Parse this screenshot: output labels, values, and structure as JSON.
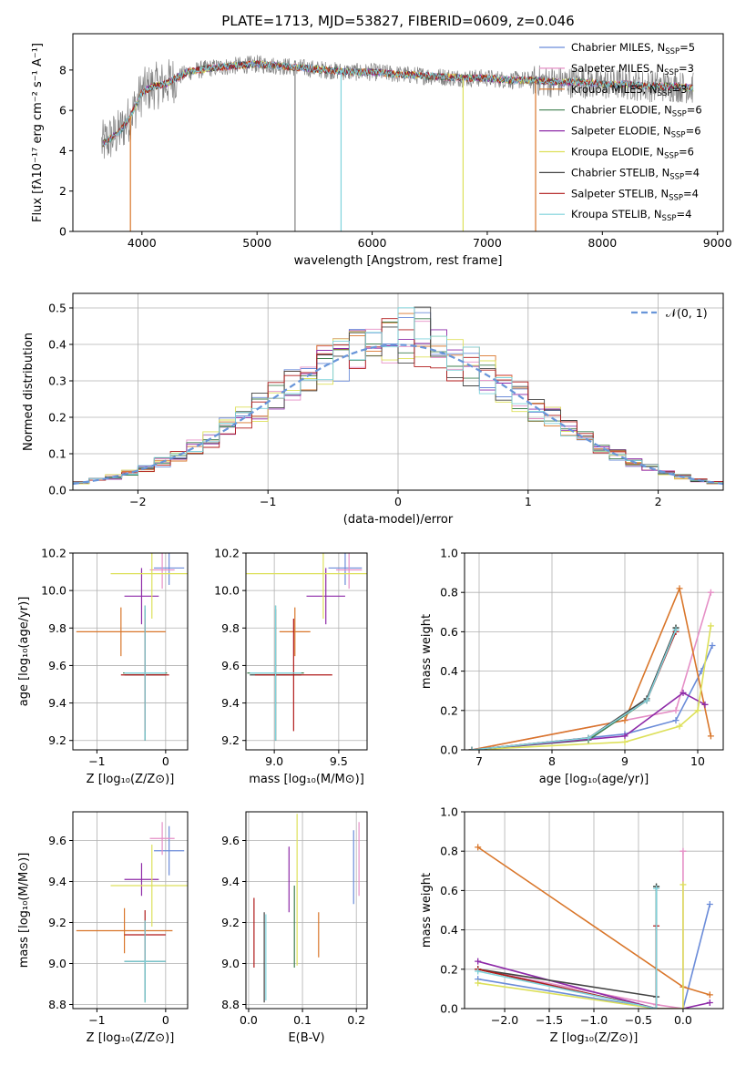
{
  "figure_title": "PLATE=1713, MJD=53827, FIBERID=0609, z=0.046",
  "colors": {
    "Chabrier MILES": "#6b8cd9",
    "Salpeter MILES": "#e58fc6",
    "Kroupa MILES": "#d9762a",
    "Chabrier ELODIE": "#3f7f4f",
    "Salpeter ELODIE": "#8e2aa8",
    "Kroupa ELODIE": "#dde05a",
    "Chabrier STELIB": "#444444",
    "Salpeter STELIB": "#b01a1a",
    "Kroupa STELIB": "#7fd3dc",
    "data": "#808080",
    "normal": "#6895d9"
  },
  "chart_data": [
    {
      "id": "spectrum",
      "type": "line",
      "title": "PLATE=1713, MJD=53827, FIBERID=0609, z=0.046",
      "xlabel": "wavelength [Angstrom, rest frame]",
      "ylabel": "Flux [fλ10⁻¹⁷ erg cm⁻² s⁻¹ A⁻¹]",
      "xlim": [
        3400,
        9050
      ],
      "ylim": [
        0,
        9.8
      ],
      "xticks": [
        4000,
        5000,
        6000,
        7000,
        8000,
        9000
      ],
      "yticks": [
        0,
        2,
        4,
        6,
        8
      ],
      "legend_position": "top-right",
      "legend": [
        {
          "label": "Chabrier MILES, N",
          "sub": "SSP",
          "val": "=5"
        },
        {
          "label": "Salpeter MILES, N",
          "sub": "SSP",
          "val": "=3"
        },
        {
          "label": "Kroupa MILES, N",
          "sub": "SSP",
          "val": "=3"
        },
        {
          "label": "Chabrier ELODIE, N",
          "sub": "SSP",
          "val": "=6"
        },
        {
          "label": "Salpeter ELODIE, N",
          "sub": "SSP",
          "val": "=6"
        },
        {
          "label": "Kroupa ELODIE, N",
          "sub": "SSP",
          "val": "=6"
        },
        {
          "label": "Chabrier STELIB, N",
          "sub": "SSP",
          "val": "=4"
        },
        {
          "label": "Salpeter STELIB, N",
          "sub": "SSP",
          "val": "=4"
        },
        {
          "label": "Kroupa STELIB, N",
          "sub": "SSP",
          "val": "=4"
        }
      ],
      "continuum": {
        "x": [
          3650,
          3700,
          3800,
          3900,
          4000,
          4100,
          4200,
          4300,
          4400,
          4600,
          4800,
          5000,
          5200,
          5400,
          5600,
          5800,
          6000,
          6200,
          6500,
          6800,
          7000,
          7200,
          7400,
          7600,
          7800,
          8000,
          8200,
          8400,
          8600,
          8800
        ],
        "y": [
          4.3,
          4.5,
          4.9,
          5.7,
          6.9,
          7.2,
          7.3,
          7.6,
          7.9,
          8.1,
          8.2,
          8.3,
          8.2,
          8.1,
          8.0,
          7.9,
          7.9,
          7.8,
          7.7,
          7.6,
          7.6,
          7.5,
          7.5,
          7.4,
          7.4,
          7.3,
          7.3,
          7.2,
          7.2,
          7.1
        ]
      },
      "dips": [
        {
          "x": 3900,
          "y": 0
        },
        {
          "x": 5330,
          "y": 0
        },
        {
          "x": 5730,
          "y": 0
        },
        {
          "x": 6790,
          "y": 0
        },
        {
          "x": 7420,
          "y": 0
        }
      ]
    },
    {
      "id": "residuals",
      "type": "line",
      "xlabel": "(data-model)/error",
      "ylabel": "Normed distribution",
      "xlim": [
        -2.5,
        2.5
      ],
      "ylim": [
        0,
        0.54
      ],
      "xticks": [
        -2,
        -1,
        0,
        1,
        2
      ],
      "yticks": [
        0.0,
        0.1,
        0.2,
        0.3,
        0.4,
        0.5
      ],
      "grid": true,
      "legend_position": "top-right",
      "legend_label": "𝒩(0, 1)",
      "curve": "standard normal N(0,1), dashed",
      "bin_width": 0.125
    },
    {
      "id": "age-vs-Z",
      "type": "scatter",
      "xlabel": "Z [log₁₀(Z/Z⊙)]",
      "ylabel": "age  [log₁₀(age/yr)]",
      "xlim": [
        -1.35,
        0.32
      ],
      "ylim": [
        9.15,
        10.2
      ],
      "xticks": [
        -1,
        0
      ],
      "yticks": [
        9.2,
        9.4,
        9.6,
        9.8,
        10.0,
        10.2
      ],
      "grid": true,
      "points": [
        {
          "model": "Chabrier MILES",
          "x": 0.05,
          "y": 10.12,
          "xerr": 0.22,
          "yerr": 0.09
        },
        {
          "model": "Salpeter MILES",
          "x": -0.05,
          "y": 10.11,
          "xerr": 0.18,
          "yerr": 0.1
        },
        {
          "model": "Kroupa MILES",
          "x": -0.65,
          "y": 9.78,
          "xerr": 0.65,
          "yerr": 0.13
        },
        {
          "model": "Chabrier ELODIE",
          "x": -0.3,
          "y": 9.56,
          "xerr": 0.32,
          "yerr": 0.36
        },
        {
          "model": "Salpeter ELODIE",
          "x": -0.35,
          "y": 9.97,
          "xerr": 0.25,
          "yerr": 0.15
        },
        {
          "model": "Kroupa ELODIE",
          "x": -0.2,
          "y": 10.09,
          "xerr": 0.6,
          "yerr": 0.24
        },
        {
          "model": "Chabrier STELIB",
          "x": -0.3,
          "y": 9.55,
          "xerr": 0.3,
          "yerr": 0.35
        },
        {
          "model": "Salpeter STELIB",
          "x": -0.3,
          "y": 9.55,
          "xerr": 0.35,
          "yerr": 0.3
        },
        {
          "model": "Kroupa STELIB",
          "x": -0.3,
          "y": 9.56,
          "xerr": 0.3,
          "yerr": 0.36
        }
      ]
    },
    {
      "id": "age-vs-mass",
      "type": "scatter",
      "xlabel": "mass [log₁₀(M/M⊙)]",
      "xlim": [
        8.78,
        9.72
      ],
      "ylim": [
        9.15,
        10.2
      ],
      "xticks": [
        9.0,
        9.5
      ],
      "yticks": [
        9.2,
        9.4,
        9.6,
        9.8,
        10.0,
        10.2
      ],
      "grid": true,
      "points": [
        {
          "model": "Chabrier MILES",
          "x": 9.55,
          "y": 10.12,
          "xerr": 0.13,
          "yerr": 0.09
        },
        {
          "model": "Salpeter MILES",
          "x": 9.58,
          "y": 10.11,
          "xerr": 0.1,
          "yerr": 0.1
        },
        {
          "model": "Kroupa MILES",
          "x": 9.16,
          "y": 9.78,
          "xerr": 0.12,
          "yerr": 0.13
        },
        {
          "model": "Chabrier ELODIE",
          "x": 9.01,
          "y": 9.56,
          "xerr": 0.22,
          "yerr": 0.36
        },
        {
          "model": "Salpeter ELODIE",
          "x": 9.4,
          "y": 9.97,
          "xerr": 0.15,
          "yerr": 0.15
        },
        {
          "model": "Kroupa ELODIE",
          "x": 9.38,
          "y": 10.09,
          "xerr": 0.6,
          "yerr": 0.24
        },
        {
          "model": "Chabrier STELIB",
          "x": 9.01,
          "y": 9.55,
          "xerr": 0.2,
          "yerr": 0.35
        },
        {
          "model": "Salpeter STELIB",
          "x": 9.15,
          "y": 9.55,
          "xerr": 0.3,
          "yerr": 0.3
        },
        {
          "model": "Kroupa STELIB",
          "x": 9.01,
          "y": 9.56,
          "xerr": 0.2,
          "yerr": 0.36
        }
      ]
    },
    {
      "id": "weight-vs-age",
      "type": "line",
      "xlabel": "age  [log₁₀(age/yr)]",
      "ylabel": "mass weight",
      "xlim": [
        6.8,
        10.35
      ],
      "ylim": [
        0,
        1.0
      ],
      "xticks": [
        7,
        8,
        9,
        10
      ],
      "yticks": [
        0.0,
        0.2,
        0.4,
        0.6,
        0.8,
        1.0
      ],
      "grid": true,
      "series": [
        {
          "model": "Chabrier MILES",
          "x": [
            6.9,
            9.0,
            9.7,
            10.05,
            10.2
          ],
          "y": [
            0.0,
            0.08,
            0.15,
            0.4,
            0.53
          ]
        },
        {
          "model": "Salpeter MILES",
          "x": [
            6.9,
            9.7,
            10.18
          ],
          "y": [
            0.0,
            0.2,
            0.8
          ]
        },
        {
          "model": "Kroupa MILES",
          "x": [
            6.9,
            9.0,
            9.75,
            10.18
          ],
          "y": [
            0.0,
            0.15,
            0.82,
            0.07
          ]
        },
        {
          "model": "Chabrier ELODIE",
          "x": [
            6.9,
            8.5,
            9.3,
            9.7
          ],
          "y": [
            0.0,
            0.05,
            0.25,
            0.62
          ]
        },
        {
          "model": "Salpeter ELODIE",
          "x": [
            6.9,
            9.0,
            9.8,
            10.1
          ],
          "y": [
            0.0,
            0.07,
            0.29,
            0.23
          ]
        },
        {
          "model": "Kroupa ELODIE",
          "x": [
            6.9,
            9.0,
            9.75,
            10.0,
            10.18
          ],
          "y": [
            0.0,
            0.04,
            0.12,
            0.2,
            0.63
          ]
        },
        {
          "model": "Chabrier STELIB",
          "x": [
            6.9,
            8.5,
            9.3,
            9.7
          ],
          "y": [
            0.0,
            0.06,
            0.26,
            0.62
          ]
        },
        {
          "model": "Salpeter STELIB",
          "x": [
            6.9,
            8.5,
            9.3,
            9.7
          ],
          "y": [
            0.0,
            0.06,
            0.25,
            0.6
          ]
        },
        {
          "model": "Kroupa STELIB",
          "x": [
            6.9,
            8.5,
            9.3,
            9.7
          ],
          "y": [
            0.0,
            0.06,
            0.25,
            0.61
          ]
        }
      ]
    },
    {
      "id": "mass-vs-Z",
      "type": "scatter",
      "xlabel": "Z [log₁₀(Z/Z⊙)]",
      "ylabel": "mass [log₁₀(M/M⊙)]",
      "xlim": [
        -1.35,
        0.32
      ],
      "ylim": [
        8.78,
        9.74
      ],
      "xticks": [
        -1,
        0
      ],
      "yticks": [
        8.8,
        9.0,
        9.2,
        9.4,
        9.6
      ],
      "grid": true,
      "points": [
        {
          "model": "Chabrier MILES",
          "x": 0.05,
          "y": 9.55,
          "xerr": 0.22,
          "yerr": 0.12
        },
        {
          "model": "Salpeter MILES",
          "x": -0.05,
          "y": 9.61,
          "xerr": 0.18,
          "yerr": 0.08
        },
        {
          "model": "Kroupa MILES",
          "x": -0.6,
          "y": 9.16,
          "xerr": 0.7,
          "yerr": 0.11
        },
        {
          "model": "Chabrier ELODIE",
          "x": -0.3,
          "y": 9.01,
          "xerr": 0.3,
          "yerr": 0.2
        },
        {
          "model": "Salpeter ELODIE",
          "x": -0.35,
          "y": 9.41,
          "xerr": 0.25,
          "yerr": 0.08
        },
        {
          "model": "Kroupa ELODIE",
          "x": -0.2,
          "y": 9.38,
          "xerr": 0.6,
          "yerr": 0.2
        },
        {
          "model": "Chabrier STELIB",
          "x": -0.3,
          "y": 9.01,
          "xerr": 0.3,
          "yerr": 0.19
        },
        {
          "model": "Salpeter STELIB",
          "x": -0.3,
          "y": 9.14,
          "xerr": 0.3,
          "yerr": 0.12
        },
        {
          "model": "Kroupa STELIB",
          "x": -0.3,
          "y": 9.01,
          "xerr": 0.3,
          "yerr": 0.2
        }
      ]
    },
    {
      "id": "mass-vs-EBV",
      "type": "scatter",
      "xlabel": "E(B-V)",
      "xlim": [
        -0.005,
        0.22
      ],
      "ylim": [
        8.78,
        9.74
      ],
      "xticks": [
        0.0,
        0.1,
        0.2
      ],
      "yticks": [
        8.8,
        9.0,
        9.2,
        9.4,
        9.6
      ],
      "grid": true,
      "points": [
        {
          "model": "Chabrier MILES",
          "x": 0.195,
          "y": 9.47,
          "yerr": 0.18
        },
        {
          "model": "Salpeter MILES",
          "x": 0.205,
          "y": 9.51,
          "yerr": 0.18
        },
        {
          "model": "Kroupa MILES",
          "x": 0.13,
          "y": 9.14,
          "yerr": 0.11
        },
        {
          "model": "Chabrier ELODIE",
          "x": 0.085,
          "y": 9.18,
          "yerr": 0.2
        },
        {
          "model": "Salpeter ELODIE",
          "x": 0.075,
          "y": 9.41,
          "yerr": 0.16
        },
        {
          "model": "Kroupa ELODIE",
          "x": 0.09,
          "y": 9.36,
          "yerr": 0.37
        },
        {
          "model": "Chabrier STELIB",
          "x": 0.029,
          "y": 9.03,
          "yerr": 0.22
        },
        {
          "model": "Salpeter STELIB",
          "x": 0.01,
          "y": 9.15,
          "yerr": 0.17
        },
        {
          "model": "Kroupa STELIB",
          "x": 0.032,
          "y": 9.03,
          "yerr": 0.21
        }
      ]
    },
    {
      "id": "weight-vs-Z",
      "type": "line",
      "xlabel": "Z [log₁₀(Z/Z⊙)]",
      "ylabel": "mass weight",
      "xlim": [
        -2.45,
        0.45
      ],
      "ylim": [
        0,
        1.0
      ],
      "xticks": [
        -2.0,
        -1.5,
        -1.0,
        -0.5,
        0.0
      ],
      "yticks": [
        0.0,
        0.2,
        0.4,
        0.6,
        0.8,
        1.0
      ],
      "grid": true,
      "series": [
        {
          "model": "Chabrier MILES",
          "x": [
            -2.3,
            -0.3,
            0.0,
            0.3
          ],
          "y": [
            0.15,
            0.0,
            0.0,
            0.53
          ]
        },
        {
          "model": "Salpeter MILES",
          "x": [
            -2.3,
            -0.3,
            0.0,
            0.0
          ],
          "y": [
            0.2,
            0.02,
            0.0,
            0.8
          ]
        },
        {
          "model": "Kroupa MILES",
          "x": [
            -2.3,
            0.0,
            0.3
          ],
          "y": [
            0.82,
            0.11,
            0.07
          ]
        },
        {
          "model": "Chabrier ELODIE",
          "x": [
            -2.3,
            -0.3,
            -0.3
          ],
          "y": [
            0.2,
            0.0,
            0.62
          ]
        },
        {
          "model": "Salpeter ELODIE",
          "x": [
            -2.3,
            -0.3,
            0.0,
            0.3
          ],
          "y": [
            0.24,
            0.0,
            0.0,
            0.03
          ]
        },
        {
          "model": "Kroupa ELODIE",
          "x": [
            -2.3,
            -0.3,
            0.0,
            0.0
          ],
          "y": [
            0.13,
            0.0,
            0.0,
            0.63
          ]
        },
        {
          "model": "Chabrier STELIB",
          "x": [
            -2.3,
            -0.3,
            -0.3
          ],
          "y": [
            0.2,
            0.06,
            0.62
          ]
        },
        {
          "model": "Salpeter STELIB",
          "x": [
            -2.3,
            -0.3,
            -0.3
          ],
          "y": [
            0.2,
            0.0,
            0.42
          ]
        },
        {
          "model": "Kroupa STELIB",
          "x": [
            -2.3,
            -0.3,
            -0.3
          ],
          "y": [
            0.19,
            0.0,
            0.61
          ]
        }
      ]
    }
  ]
}
